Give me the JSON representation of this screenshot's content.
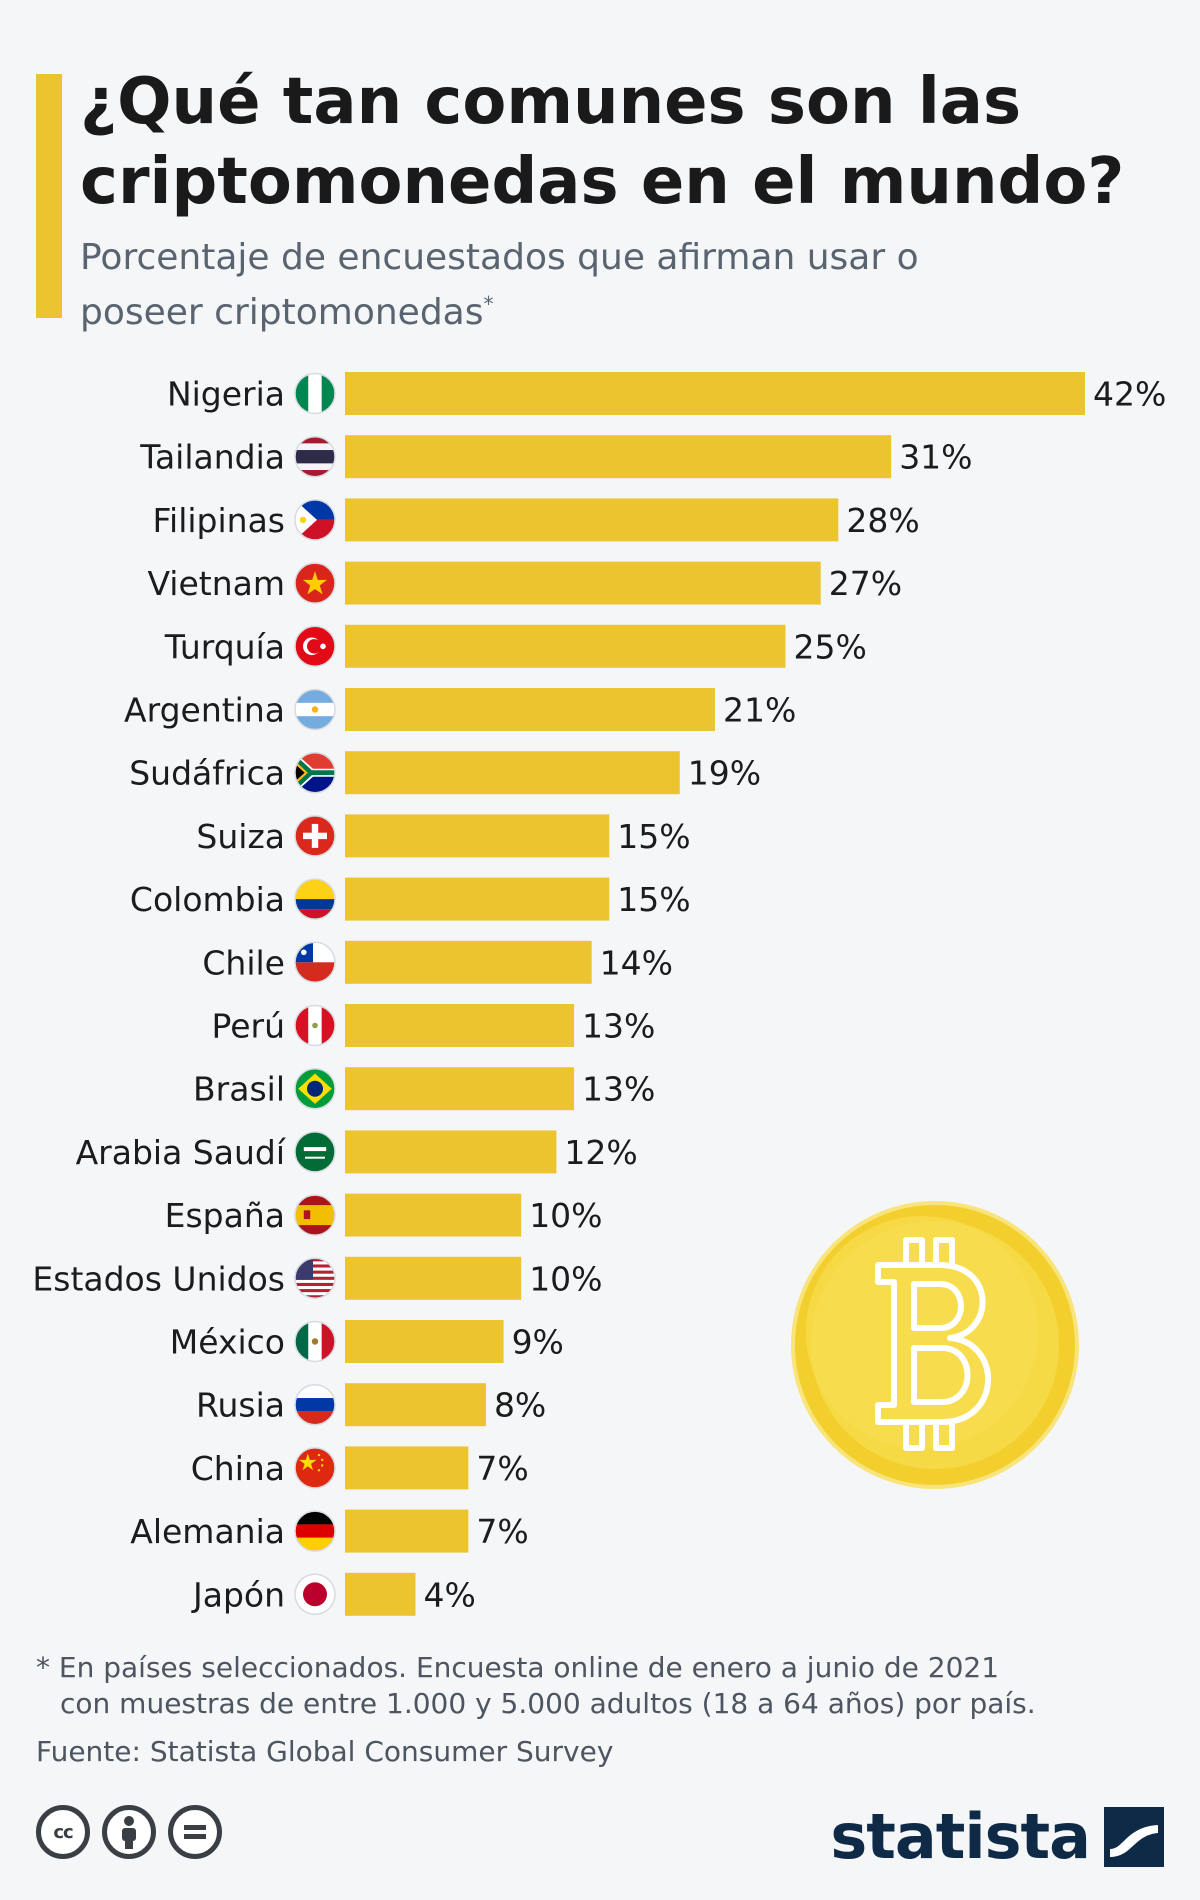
{
  "header": {
    "title": "¿Qué tan comunes son las criptomonedas en el mundo?",
    "subtitle": "Porcentaje de encuestados que afirman usar o poseer criptomonedas",
    "subtitle_mark": "*",
    "accent_color": "#ecc430"
  },
  "chart_data": {
    "type": "bar",
    "orientation": "horizontal",
    "title": "¿Qué tan comunes son las criptomonedas en el mundo?",
    "subtitle": "Porcentaje de encuestados que afirman usar o poseer criptomonedas*",
    "categories": [
      "Nigeria",
      "Tailandia",
      "Filipinas",
      "Vietnam",
      "Turquía",
      "Argentina",
      "Sudáfrica",
      "Suiza",
      "Colombia",
      "Chile",
      "Perú",
      "Brasil",
      "Arabia Saudí",
      "España",
      "Estados Unidos",
      "México",
      "Rusia",
      "China",
      "Alemania",
      "Japón"
    ],
    "values": [
      42,
      31,
      28,
      27,
      25,
      21,
      19,
      15,
      15,
      14,
      13,
      13,
      12,
      10,
      10,
      9,
      8,
      7,
      7,
      4
    ],
    "value_labels": [
      "42%",
      "31%",
      "28%",
      "27%",
      "25%",
      "21%",
      "19%",
      "15%",
      "15%",
      "14%",
      "13%",
      "13%",
      "12%",
      "10%",
      "10%",
      "9%",
      "8%",
      "7%",
      "7%",
      "4%"
    ],
    "flag_icons": [
      "nigeria-flag-icon",
      "thailand-flag-icon",
      "philippines-flag-icon",
      "vietnam-flag-icon",
      "turkey-flag-icon",
      "argentina-flag-icon",
      "south-africa-flag-icon",
      "switzerland-flag-icon",
      "colombia-flag-icon",
      "chile-flag-icon",
      "peru-flag-icon",
      "brazil-flag-icon",
      "saudi-arabia-flag-icon",
      "spain-flag-icon",
      "usa-flag-icon",
      "mexico-flag-icon",
      "russia-flag-icon",
      "china-flag-icon",
      "germany-flag-icon",
      "japan-flag-icon"
    ],
    "xlim": [
      0,
      42
    ],
    "grid": false,
    "legend": "none",
    "bar_color": "#ecc430"
  },
  "decoration": {
    "coin_icon": "bitcoin-coin-icon"
  },
  "footer": {
    "note_line1": "* En países seleccionados. Encuesta online de enero a junio de 2021",
    "note_line2": "con muestras de entre 1.000 y 5.000 adultos (18 a 64 años) por país.",
    "source": "Fuente: Statista Global Consumer Survey",
    "license_icons": [
      "cc-icon",
      "by-icon",
      "nd-icon"
    ],
    "cc_label": "cc",
    "brand": "statista",
    "brand_color": "#0f2a47"
  }
}
